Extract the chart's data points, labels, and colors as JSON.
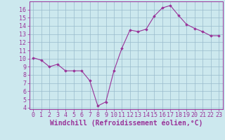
{
  "x": [
    0,
    1,
    2,
    3,
    4,
    5,
    6,
    7,
    8,
    9,
    10,
    11,
    12,
    13,
    14,
    15,
    16,
    17,
    18,
    19,
    20,
    21,
    22,
    23
  ],
  "y": [
    10.1,
    9.8,
    9.0,
    9.3,
    8.5,
    8.5,
    8.5,
    7.3,
    4.2,
    4.7,
    8.5,
    11.3,
    13.5,
    13.3,
    13.6,
    15.2,
    16.2,
    16.5,
    15.3,
    14.2,
    13.7,
    13.3,
    12.8,
    12.8
  ],
  "line_color": "#993399",
  "marker": "D",
  "marker_size": 1.8,
  "line_width": 0.8,
  "xlabel": "Windchill (Refroidissement éolien,°C)",
  "xlabel_fontsize": 7,
  "background_color": "#cce8ee",
  "grid_color": "#99bbcc",
  "tick_color": "#993399",
  "ylim": [
    3.8,
    17.0
  ],
  "xlim": [
    -0.5,
    23.5
  ],
  "yticks": [
    4,
    5,
    6,
    7,
    8,
    9,
    10,
    11,
    12,
    13,
    14,
    15,
    16
  ],
  "xticks": [
    0,
    1,
    2,
    3,
    4,
    5,
    6,
    7,
    8,
    9,
    10,
    11,
    12,
    13,
    14,
    15,
    16,
    17,
    18,
    19,
    20,
    21,
    22,
    23
  ],
  "tick_fontsize": 6,
  "spine_color": "#993399"
}
